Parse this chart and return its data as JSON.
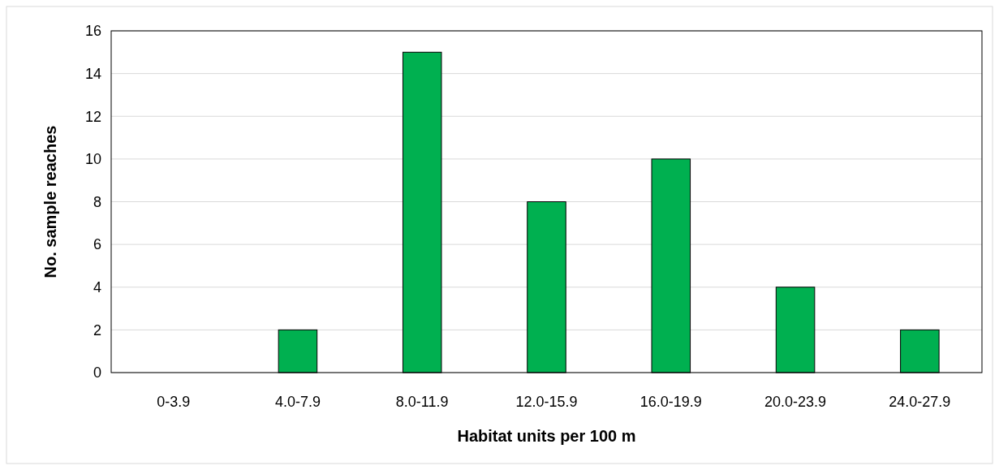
{
  "chart_data": {
    "type": "bar",
    "xlabel": "Habitat units per 100 m",
    "ylabel": "No. sample reaches",
    "categories": [
      "0-3.9",
      "4.0-7.9",
      "8.0-11.9",
      "12.0-15.9",
      "16.0-19.9",
      "20.0-23.9",
      "24.0-27.9"
    ],
    "values": [
      0,
      2,
      15,
      8,
      10,
      4,
      2
    ],
    "color": "#00b050",
    "ylim": [
      0,
      16
    ],
    "yticks": [
      0,
      2,
      4,
      6,
      8,
      10,
      12,
      14,
      16
    ],
    "grid": "y"
  }
}
